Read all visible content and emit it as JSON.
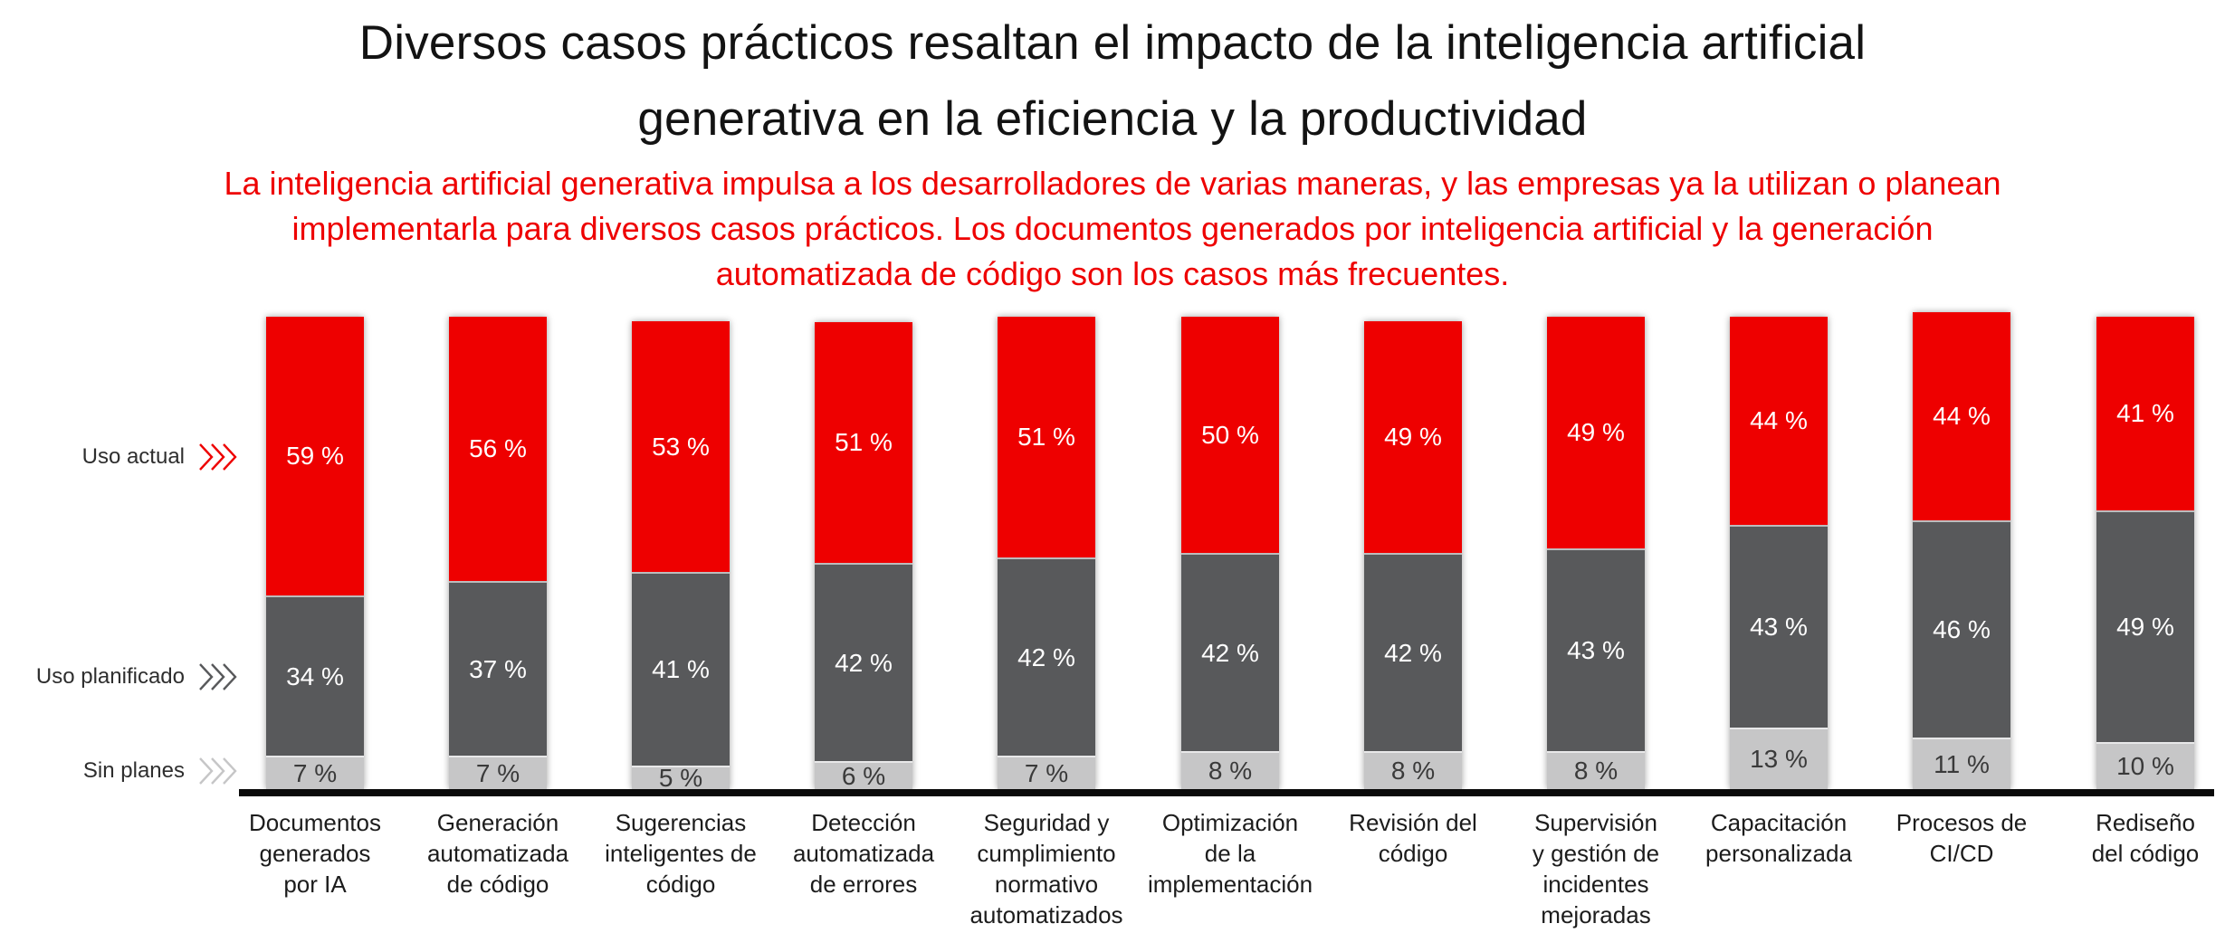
{
  "title_lines": [
    "Diversos casos prácticos resaltan el impacto de la inteligencia artificial",
    "generativa en la eficiencia y la productividad"
  ],
  "subtitle_lines": [
    "La inteligencia artificial generativa impulsa a los desarrolladores de varias maneras, y las empresas ya la utilizan o planean",
    "implementarla para diversos casos prácticos. Los documentos generados por inteligencia artificial y la generación",
    "automatizada de código son los casos más frecuentes."
  ],
  "colors": {
    "background": "#ffffff",
    "title": "#131313",
    "subtitle": "#ee0000",
    "axis_line": "#0a0a0a",
    "category_label": "#1c1c1c",
    "legend_label": "#2e2e2e"
  },
  "chart_data": {
    "type": "bar",
    "stacked": true,
    "orientation": "vertical",
    "unit": "%",
    "ylim": [
      0,
      100
    ],
    "grid": false,
    "legend_position": "left",
    "value_label_format": "{value} %",
    "categories": [
      "Documentos generados por IA",
      "Generación automatizada de código",
      "Sugerencias inteligentes de código",
      "Detección automatizada de errores",
      "Seguridad y cumplimiento normativo automatizados",
      "Optimización de la implementación",
      "Revisión del código",
      "Supervisión y gestión de incidentes mejoradas",
      "Capacitación personalizada",
      "Procesos de CI/CD",
      "Rediseño del código"
    ],
    "category_label_lines": [
      [
        "Documentos",
        "generados",
        "por IA"
      ],
      [
        "Generación",
        "automatizada",
        "de código"
      ],
      [
        "Sugerencias",
        "inteligentes de",
        "código"
      ],
      [
        "Detección",
        "automatizada",
        "de errores"
      ],
      [
        "Seguridad y",
        "cumplimiento",
        "normativo",
        "automatizados"
      ],
      [
        "Optimización",
        "de la",
        "implementación"
      ],
      [
        "Revisión del",
        "código"
      ],
      [
        "Supervisión",
        "y gestión de",
        "incidentes",
        "mejoradas"
      ],
      [
        "Capacitación",
        "personalizada"
      ],
      [
        "Procesos de",
        "CI/CD"
      ],
      [
        "Rediseño",
        "del código"
      ]
    ],
    "series": [
      {
        "name": "Uso actual",
        "color": "#ee0000",
        "label_color": "#ffffff",
        "values": [
          59,
          56,
          53,
          51,
          51,
          50,
          49,
          49,
          44,
          44,
          41
        ]
      },
      {
        "name": "Uso planificado",
        "color": "#58595b",
        "label_color": "#ffffff",
        "values": [
          34,
          37,
          41,
          42,
          42,
          42,
          42,
          43,
          43,
          46,
          49
        ]
      },
      {
        "name": "Sin planes",
        "color": "#c6c6c7",
        "label_color": "#3a3a3a",
        "values": [
          7,
          7,
          5,
          6,
          7,
          8,
          8,
          8,
          13,
          11,
          10
        ]
      }
    ]
  }
}
